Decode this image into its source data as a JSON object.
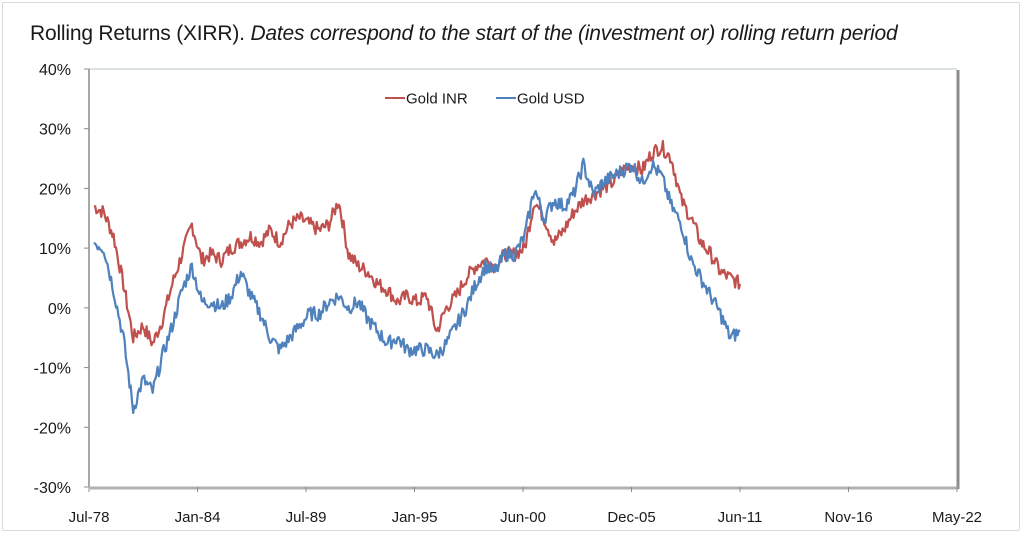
{
  "title": {
    "main": "Rolling Returns (XIRR).",
    "subtitle": "Dates correspond to the start of the (investment or) rolling return period"
  },
  "legend": [
    {
      "label": "Gold INR",
      "color": "#c0504d"
    },
    {
      "label": "Gold USD",
      "color": "#4f81bd"
    }
  ],
  "chart_data": {
    "type": "line",
    "title": "Rolling Returns (XIRR). Dates correspond to the start of the (investment or) rolling return period",
    "xlabel": "",
    "ylabel": "",
    "x_tick_labels": [
      "Jul-78",
      "Jan-84",
      "Jul-89",
      "Jan-95",
      "Jun-00",
      "Dec-05",
      "Jun-11",
      "Nov-16",
      "May-22"
    ],
    "y_tick_labels": [
      "-30%",
      "-20%",
      "-10%",
      "0%",
      "10%",
      "20%",
      "30%",
      "40%"
    ],
    "ylim": [
      -30,
      40
    ],
    "xlim": [
      "Jul-78",
      "May-22"
    ],
    "legend_position": "top-center",
    "grid": false,
    "x": [
      "Jul-78",
      "Jan-79",
      "Jul-79",
      "Jan-80",
      "Jul-80",
      "Jan-81",
      "Jul-81",
      "Jan-82",
      "Jul-82",
      "Jan-83",
      "Jul-83",
      "Jan-84",
      "Jul-84",
      "Jan-85",
      "Jul-85",
      "Jan-86",
      "Jul-86",
      "Jan-87",
      "Jul-87",
      "Jan-88",
      "Jul-88",
      "Jan-89",
      "Jul-89",
      "Jan-90",
      "Jul-90",
      "Jan-91",
      "Jul-91",
      "Jan-92",
      "Jul-92",
      "Jan-93",
      "Jul-93",
      "Jan-94",
      "Jul-94",
      "Jan-95",
      "Jul-95",
      "Jan-96",
      "Jul-96",
      "Jan-97",
      "Jul-97",
      "Jan-98",
      "Jul-98",
      "Jan-99",
      "Jul-99",
      "Jan-00",
      "Jul-00",
      "Jan-01",
      "Jul-01",
      "Jan-02",
      "Jul-02",
      "Jan-03",
      "Jul-03",
      "Jan-04",
      "Jul-04",
      "Jan-05",
      "Jul-05",
      "Jan-06",
      "Jul-06",
      "Jan-07",
      "Jul-07",
      "Jan-08",
      "Jul-08",
      "Jan-09",
      "Jul-09",
      "Jan-10",
      "Jul-10",
      "Jan-11",
      "Jun-11"
    ],
    "series": [
      {
        "name": "Gold INR",
        "color": "#c0504d",
        "values": [
          17,
          16,
          12,
          4,
          -5,
          -3,
          -6,
          -2,
          4,
          9,
          14,
          8,
          9,
          8,
          10,
          11,
          12,
          11,
          13,
          11,
          14,
          15,
          14,
          13,
          14,
          18,
          9,
          7,
          6,
          4,
          3,
          1,
          2,
          1,
          2,
          -4,
          0,
          2,
          5,
          7,
          8,
          7,
          9,
          9,
          10,
          18,
          15,
          11,
          13,
          16,
          18,
          19,
          20,
          21,
          23,
          24,
          23,
          26,
          27,
          25,
          18,
          15,
          11,
          9,
          6,
          5,
          4
        ]
      },
      {
        "name": "Gold USD",
        "color": "#4f81bd",
        "values": [
          11,
          10,
          3,
          -5,
          -17,
          -12,
          -14,
          -8,
          -3,
          3,
          7,
          1,
          1,
          0,
          2,
          6,
          2,
          -1,
          -5,
          -7,
          -5,
          -3,
          -1,
          -1,
          1,
          2,
          0,
          1,
          -2,
          -4,
          -6,
          -5,
          -7,
          -7,
          -7,
          -8,
          -6,
          -3,
          0,
          4,
          7,
          6,
          9,
          9,
          12,
          20,
          15,
          18,
          17,
          19,
          24,
          19,
          21,
          22,
          23,
          24,
          21,
          24,
          22,
          17,
          14,
          8,
          5,
          2,
          -1,
          -5,
          -4
        ]
      }
    ]
  }
}
